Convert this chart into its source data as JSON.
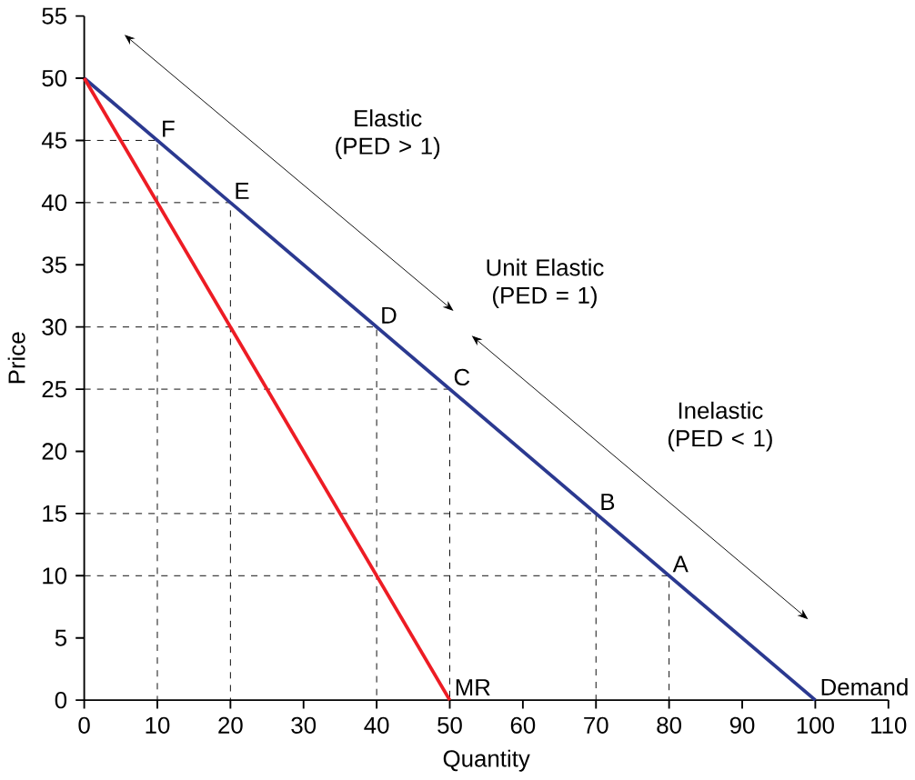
{
  "chart_data": {
    "type": "line",
    "xlabel": "Quantity",
    "ylabel": "Price",
    "series": [
      {
        "name": "Demand",
        "color": "#2b3990",
        "x": [
          0,
          100
        ],
        "values": [
          50,
          0
        ]
      },
      {
        "name": "MR",
        "color": "#ed1c24",
        "x": [
          0,
          50
        ],
        "values": [
          50,
          0
        ]
      },
      {
        "color": "#000000",
        "line_style": "dashed",
        "x": [
          0,
          80,
          80
        ],
        "values": [
          10,
          10,
          0
        ]
      },
      {
        "color": "#000000",
        "line_style": "dashed",
        "x": [
          0,
          70,
          70
        ],
        "values": [
          15,
          15,
          0
        ]
      },
      {
        "color": "#000000",
        "line_style": "dashed",
        "x": [
          0,
          50,
          50
        ],
        "values": [
          25,
          25,
          0
        ]
      },
      {
        "color": "#000000",
        "line_style": "dashed",
        "x": [
          0,
          40,
          40
        ],
        "values": [
          30,
          30,
          0
        ]
      },
      {
        "color": "#000000",
        "line_style": "dashed",
        "x": [
          0,
          20,
          20
        ],
        "values": [
          40,
          40,
          0
        ]
      },
      {
        "color": "#000000",
        "line_style": "dashed",
        "x": [
          0,
          10,
          10
        ],
        "values": [
          45,
          45,
          0
        ]
      }
    ],
    "xlim": [
      0,
      110
    ],
    "ylim": [
      0,
      55
    ],
    "xticks": [
      0,
      10,
      20,
      30,
      40,
      50,
      60,
      70,
      80,
      90,
      100,
      110
    ],
    "yticks": [
      0,
      5,
      10,
      15,
      20,
      25,
      30,
      35,
      40,
      45,
      50,
      55
    ],
    "grid": false,
    "annotations": [
      "Elastic (PED > 1)",
      "Unit Elastic (PED = 1)",
      "Inelastic (PED < 1)",
      {
        "text": "A",
        "x": 80,
        "y": 10
      },
      {
        "text": "B",
        "x": 70,
        "y": 15
      },
      {
        "text": "C",
        "x": 50,
        "y": 25
      },
      {
        "text": "D",
        "x": 40,
        "y": 30
      },
      {
        "text": "E",
        "x": 20,
        "y": 40
      },
      {
        "text": "F",
        "x": 10,
        "y": 45
      }
    ]
  }
}
